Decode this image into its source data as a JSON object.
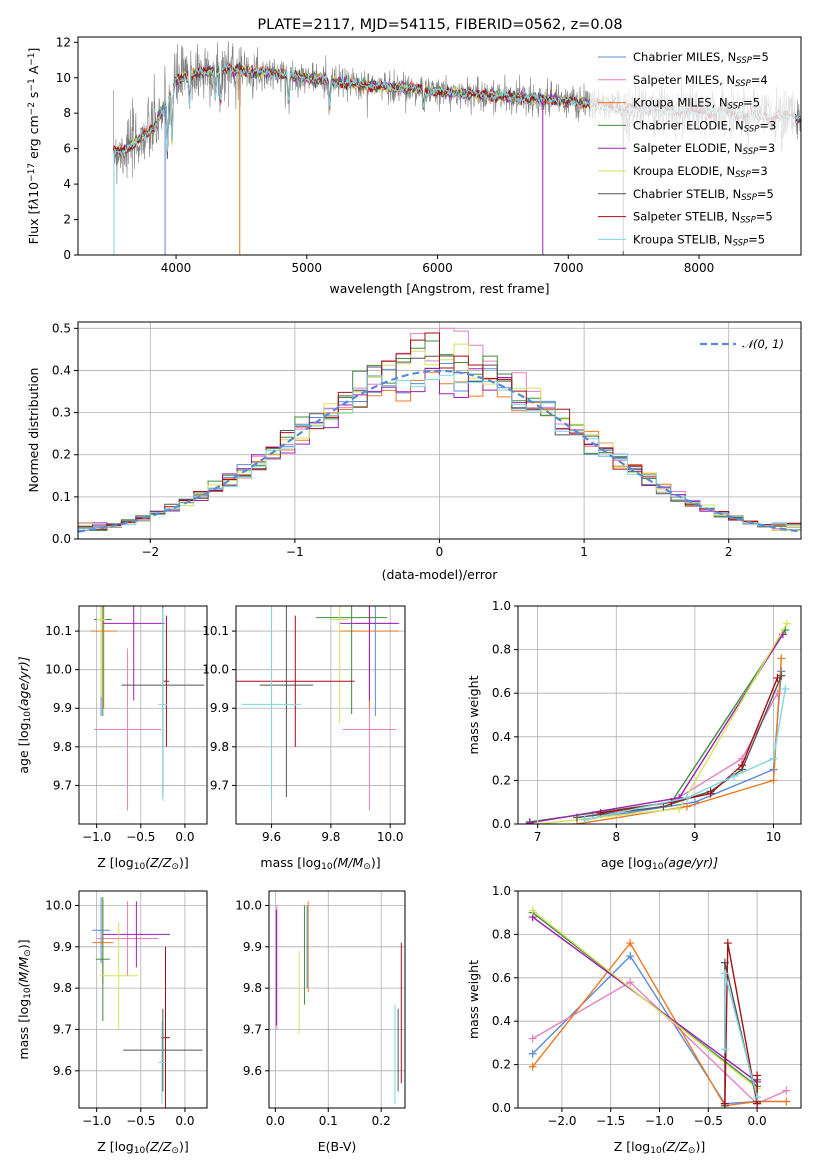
{
  "figure": {
    "title": "PLATE=2117, MJD=54115, FIBERID=0562, z=0.08"
  },
  "colors": {
    "Chabrier MILES": "#5b8bd6",
    "Salpeter MILES": "#e77fc1",
    "Kroupa MILES": "#ea7a22",
    "Chabrier ELODIE": "#3f8f3f",
    "Salpeter ELODIE": "#a020b8",
    "Kroupa ELODIE": "#d4e35a",
    "Chabrier STELIB": "#555555",
    "Salpeter STELIB": "#a50f15",
    "Kroupa STELIB": "#7fd6e0"
  },
  "chart_data": [
    {
      "id": "spectrum",
      "type": "line",
      "title": "PLATE=2117, MJD=54115, FIBERID=0562, z=0.08",
      "xlabel": "wavelength [Angstrom, rest frame]",
      "ylabel_parts": [
        "Flux [f",
        "λ",
        "10",
        "−17",
        " erg cm",
        "−2",
        " s",
        "−1",
        " A",
        "−1",
        "]"
      ],
      "xlim": [
        3250,
        8780
      ],
      "ylim": [
        0,
        12.3
      ],
      "xticks": [
        4000,
        5000,
        6000,
        7000,
        8000
      ],
      "yticks": [
        0,
        2,
        4,
        6,
        8,
        10,
        12
      ],
      "grid": false,
      "legend_position": "right",
      "legend": [
        {
          "name": "Chabrier MILES",
          "nssp": "5"
        },
        {
          "name": "Salpeter MILES",
          "nssp": "4"
        },
        {
          "name": "Kroupa MILES",
          "nssp": "5"
        },
        {
          "name": "Chabrier ELODIE",
          "nssp": "3"
        },
        {
          "name": "Salpeter ELODIE",
          "nssp": "3"
        },
        {
          "name": "Kroupa ELODIE",
          "nssp": "3"
        },
        {
          "name": "Chabrier STELIB",
          "nssp": "5"
        },
        {
          "name": "Salpeter STELIB",
          "nssp": "5"
        },
        {
          "name": "Kroupa STELIB",
          "nssp": "5"
        }
      ],
      "continuum": {
        "x": [
          3520,
          3600,
          3700,
          3800,
          3850,
          3900,
          3950,
          4000,
          4100,
          4200,
          4300,
          4400,
          4500,
          4700,
          5000,
          5200,
          5400,
          5600,
          5800,
          6000,
          6200,
          6400,
          6600,
          6800,
          7000,
          7200,
          7400
        ],
        "y": [
          5.8,
          5.9,
          6.4,
          7.0,
          7.4,
          8.2,
          9.1,
          9.8,
          10.2,
          10.3,
          10.4,
          10.5,
          10.4,
          10.3,
          10.0,
          9.8,
          9.6,
          9.5,
          9.4,
          9.2,
          9.1,
          9.0,
          8.9,
          8.8,
          8.7,
          8.5,
          8.3
        ]
      },
      "absorption_lines": [
        {
          "x": 3934,
          "depth": 3.0
        },
        {
          "x": 3969,
          "depth": 2.8
        },
        {
          "x": 4102,
          "depth": 1.6
        },
        {
          "x": 4300,
          "depth": 1.4
        },
        {
          "x": 4340,
          "depth": 1.8
        },
        {
          "x": 4861,
          "depth": 1.6
        },
        {
          "x": 5175,
          "depth": 1.4
        },
        {
          "x": 5893,
          "depth": 1.0
        }
      ],
      "spikes": [
        {
          "x": 3916,
          "y": 0
        },
        {
          "x": 4487,
          "y": 0
        },
        {
          "x": 6805,
          "y": 0
        },
        {
          "x": 7420,
          "y": 0
        },
        {
          "x": 3525,
          "y": 0
        }
      ],
      "data_extent": [
        3520,
        8780
      ]
    },
    {
      "id": "residuals",
      "type": "histogram",
      "xlabel": "(data-model)/error",
      "ylabel": "Normed distribution",
      "xlim": [
        -2.5,
        2.5
      ],
      "ylim": [
        0,
        0.515
      ],
      "xticks": [
        -2,
        -1,
        0,
        1,
        2
      ],
      "yticks": [
        0.0,
        0.1,
        0.2,
        0.3,
        0.4,
        0.5
      ],
      "grid": true,
      "legend_position": "top-right",
      "legend": [
        {
          "name": "𝒩(0, 1)",
          "style": "dashed"
        }
      ],
      "bin_width": 0.1,
      "series_peak_deviation": [
        0.0,
        0.06,
        -0.03,
        0.04,
        -0.02,
        0.03,
        0.01,
        0.05,
        -0.01
      ]
    },
    {
      "id": "z-age",
      "type": "errorbar",
      "xlabel_parts": [
        "Z [log",
        "10",
        "(Z/Z",
        "⊙",
        ")]"
      ],
      "ylabel_parts": [
        "age  [log",
        "10",
        "(age/yr)]"
      ],
      "xlim": [
        -1.2,
        0.25
      ],
      "ylim": [
        9.6,
        10.165
      ],
      "xticks": [
        -1.0,
        -0.5,
        0.0
      ],
      "xtick_labels": [
        "−1.0",
        "−0.5",
        "0.0"
      ],
      "yticks": [
        9.7,
        9.8,
        9.9,
        10.0,
        10.1
      ],
      "grid": true,
      "points": [
        {
          "s": "Chabrier MILES",
          "x": -0.95,
          "xe": 0.08,
          "y": 10.13,
          "ye": 0.25
        },
        {
          "s": "Salpeter MILES",
          "x": -0.65,
          "xe": 0.38,
          "y": 9.845,
          "ye": 0.21
        },
        {
          "s": "Kroupa MILES",
          "x": -0.92,
          "xe": 0.15,
          "y": 10.1,
          "ye": 0.2
        },
        {
          "s": "Chabrier ELODIE",
          "x": -0.93,
          "xe": 0.1,
          "y": 10.13,
          "ye": 0.25
        },
        {
          "s": "Salpeter ELODIE",
          "x": -0.58,
          "xe": 0.35,
          "y": 10.12,
          "ye": 0.2
        },
        {
          "s": "Kroupa ELODIE",
          "x": -0.95,
          "xe": 0.05,
          "y": 10.13,
          "ye": 0.2
        },
        {
          "s": "Chabrier STELIB",
          "x": -0.25,
          "xe": 0.47,
          "y": 9.96,
          "ye": 0.29
        },
        {
          "s": "Salpeter STELIB",
          "x": -0.21,
          "xe": 0.03,
          "y": 9.97,
          "ye": 0.17
        },
        {
          "s": "Kroupa STELIB",
          "x": -0.25,
          "xe": 0.05,
          "y": 9.91,
          "ye": 0.25
        }
      ]
    },
    {
      "id": "mass-age",
      "type": "errorbar",
      "xlabel_parts": [
        "mass [log",
        "10",
        "(M/M",
        "⊙",
        ")]"
      ],
      "ylabel_parts": [],
      "xlim": [
        9.48,
        10.05
      ],
      "ylim": [
        9.6,
        10.165
      ],
      "xticks": [
        9.6,
        9.8,
        10.0
      ],
      "xtick_labels": [
        "9.6",
        "9.8",
        "10.0"
      ],
      "yticks": [
        9.7,
        9.8,
        9.9,
        10.0,
        10.1
      ],
      "grid": true,
      "points": [
        {
          "s": "Chabrier MILES",
          "x": 9.95,
          "xe": 0.07,
          "y": 10.12,
          "ye": 0.24
        },
        {
          "s": "Salpeter MILES",
          "x": 9.93,
          "xe": 0.09,
          "y": 9.845,
          "ye": 0.21
        },
        {
          "s": "Kroupa MILES",
          "x": 9.93,
          "xe": 0.1,
          "y": 10.1,
          "ye": 0.2
        },
        {
          "s": "Chabrier ELODIE",
          "x": 9.87,
          "xe": 0.12,
          "y": 10.135,
          "ye": 0.25
        },
        {
          "s": "Salpeter ELODIE",
          "x": 9.93,
          "xe": 0.1,
          "y": 10.12,
          "ye": 0.2
        },
        {
          "s": "Kroupa ELODIE",
          "x": 9.83,
          "xe": 0.03,
          "y": 10.13,
          "ye": 0.27
        },
        {
          "s": "Chabrier STELIB",
          "x": 9.65,
          "xe": 0.09,
          "y": 9.96,
          "ye": 0.29
        },
        {
          "s": "Salpeter STELIB",
          "x": 9.68,
          "xe": 0.2,
          "y": 9.97,
          "ye": 0.17
        },
        {
          "s": "Kroupa STELIB",
          "x": 9.6,
          "xe": 0.1,
          "y": 9.91,
          "ye": 0.25
        }
      ]
    },
    {
      "id": "age-massweight",
      "type": "line",
      "xlabel_parts": [
        "age  [log",
        "10",
        "(age/yr)]"
      ],
      "ylabel": "mass weight",
      "xlim": [
        6.75,
        10.35
      ],
      "ylim": [
        0,
        1.0
      ],
      "xticks": [
        7,
        8,
        9,
        10
      ],
      "xtick_labels": [
        "7",
        "8",
        "9",
        "10"
      ],
      "yticks": [
        0.0,
        0.2,
        0.4,
        0.6,
        0.8,
        1.0
      ],
      "grid": true,
      "series": [
        {
          "name": "Chabrier MILES",
          "x": [
            7.6,
            9.0,
            10.0,
            10.1
          ],
          "y": [
            0.02,
            0.1,
            0.25,
            0.7
          ]
        },
        {
          "name": "Salpeter MILES",
          "x": [
            7.7,
            8.7,
            9.6,
            10.05
          ],
          "y": [
            0.04,
            0.1,
            0.3,
            0.6
          ]
        },
        {
          "name": "Kroupa MILES",
          "x": [
            7.5,
            8.9,
            10.0,
            10.1
          ],
          "y": [
            0.0,
            0.08,
            0.2,
            0.76
          ]
        },
        {
          "name": "Chabrier ELODIE",
          "x": [
            6.9,
            8.7,
            10.15
          ],
          "y": [
            0.01,
            0.1,
            0.89
          ]
        },
        {
          "name": "Salpeter ELODIE",
          "x": [
            6.9,
            8.8,
            10.12
          ],
          "y": [
            0.005,
            0.12,
            0.87
          ]
        },
        {
          "name": "Kroupa ELODIE",
          "x": [
            7.0,
            8.8,
            10.17
          ],
          "y": [
            0.0,
            0.07,
            0.92
          ]
        },
        {
          "name": "Chabrier STELIB",
          "x": [
            7.5,
            8.6,
            9.2,
            9.6,
            10.1
          ],
          "y": [
            0.03,
            0.08,
            0.15,
            0.25,
            0.68
          ]
        },
        {
          "name": "Salpeter STELIB",
          "x": [
            7.8,
            8.7,
            9.2,
            9.6,
            10.05
          ],
          "y": [
            0.05,
            0.1,
            0.14,
            0.27,
            0.67
          ]
        },
        {
          "name": "Kroupa STELIB",
          "x": [
            7.6,
            8.9,
            9.5,
            10.0,
            10.15
          ],
          "y": [
            0.02,
            0.12,
            0.22,
            0.3,
            0.62
          ]
        }
      ]
    },
    {
      "id": "z-mass",
      "type": "errorbar",
      "xlabel_parts": [
        "Z [log",
        "10",
        "(Z/Z",
        "⊙",
        ")]"
      ],
      "ylabel_parts": [
        "mass [log",
        "10",
        "(M/M",
        "⊙",
        ")]"
      ],
      "xlim": [
        -1.2,
        0.25
      ],
      "ylim": [
        9.51,
        10.035
      ],
      "xticks": [
        -1.0,
        -0.5,
        0.0
      ],
      "xtick_labels": [
        "−1.0",
        "−0.5",
        "0.0"
      ],
      "yticks": [
        9.6,
        9.7,
        9.8,
        9.9,
        10.0
      ],
      "grid": true,
      "points": [
        {
          "s": "Chabrier MILES",
          "x": -0.95,
          "xe": 0.1,
          "y": 9.94,
          "ye": 0.08
        },
        {
          "s": "Salpeter MILES",
          "x": -0.65,
          "xe": 0.35,
          "y": 9.92,
          "ye": 0.09
        },
        {
          "s": "Kroupa MILES",
          "x": -0.93,
          "xe": 0.12,
          "y": 9.91,
          "ye": 0.1
        },
        {
          "s": "Chabrier ELODIE",
          "x": -0.93,
          "xe": 0.08,
          "y": 9.87,
          "ye": 0.15
        },
        {
          "s": "Salpeter ELODIE",
          "x": -0.55,
          "xe": 0.38,
          "y": 9.93,
          "ye": 0.08
        },
        {
          "s": "Kroupa ELODIE",
          "x": -0.75,
          "xe": 0.22,
          "y": 9.83,
          "ye": 0.13
        },
        {
          "s": "Chabrier STELIB",
          "x": -0.25,
          "xe": 0.45,
          "y": 9.65,
          "ye": 0.1
        },
        {
          "s": "Salpeter STELIB",
          "x": -0.22,
          "xe": 0.05,
          "y": 9.68,
          "ye": 0.22
        },
        {
          "s": "Kroupa STELIB",
          "x": -0.26,
          "xe": 0.04,
          "y": 9.62,
          "ye": 0.1
        }
      ]
    },
    {
      "id": "ebv-mass",
      "type": "errorbar",
      "xlabel_parts": [
        "E(B-V)"
      ],
      "ylabel_parts": [],
      "xlim": [
        -0.012,
        0.245
      ],
      "ylim": [
        9.51,
        10.035
      ],
      "xticks": [
        0.0,
        0.1,
        0.2
      ],
      "xtick_labels": [
        "0.0",
        "0.1",
        "0.2"
      ],
      "yticks": [
        9.6,
        9.7,
        9.8,
        9.9,
        10.0
      ],
      "grid": true,
      "points": [
        {
          "s": "Chabrier MILES",
          "x": 0.06,
          "xe": 0.0,
          "y": 9.9,
          "ye": 0.1
        },
        {
          "s": "Salpeter MILES",
          "x": 0.003,
          "xe": 0.0,
          "y": 9.85,
          "ye": 0.15
        },
        {
          "s": "Kroupa MILES",
          "x": 0.062,
          "xe": 0.0,
          "y": 9.9,
          "ye": 0.11
        },
        {
          "s": "Chabrier ELODIE",
          "x": 0.055,
          "xe": 0.0,
          "y": 9.88,
          "ye": 0.12
        },
        {
          "s": "Salpeter ELODIE",
          "x": 0.002,
          "xe": 0.0,
          "y": 9.85,
          "ye": 0.14
        },
        {
          "s": "Kroupa ELODIE",
          "x": 0.045,
          "xe": 0.0,
          "y": 9.79,
          "ye": 0.1
        },
        {
          "s": "Chabrier STELIB",
          "x": 0.232,
          "xe": 0.0,
          "y": 9.65,
          "ye": 0.1
        },
        {
          "s": "Salpeter STELIB",
          "x": 0.238,
          "xe": 0.0,
          "y": 9.74,
          "ye": 0.17
        },
        {
          "s": "Kroupa STELIB",
          "x": 0.226,
          "xe": 0.0,
          "y": 9.64,
          "ye": 0.12
        }
      ]
    },
    {
      "id": "z-massweight",
      "type": "line",
      "xlabel_parts": [
        "Z [log",
        "10",
        "(Z/Z",
        "⊙",
        ")]"
      ],
      "ylabel": "mass weight",
      "xlim": [
        -2.45,
        0.45
      ],
      "ylim": [
        0,
        1.0
      ],
      "xticks": [
        -2.0,
        -1.5,
        -1.0,
        -0.5,
        0.0
      ],
      "xtick_labels": [
        "−2.0",
        "−1.5",
        "−1.0",
        "−0.5",
        "0.0"
      ],
      "yticks": [
        0.0,
        0.2,
        0.4,
        0.6,
        0.8,
        1.0
      ],
      "grid": true,
      "series": [
        {
          "name": "Chabrier MILES",
          "x": [
            -2.3,
            -1.3,
            -0.33,
            0.0
          ],
          "y": [
            0.25,
            0.7,
            0.02,
            0.03
          ]
        },
        {
          "name": "Salpeter MILES",
          "x": [
            -2.3,
            -1.3,
            0.0,
            0.3
          ],
          "y": [
            0.32,
            0.58,
            0.02,
            0.08
          ]
        },
        {
          "name": "Kroupa MILES",
          "x": [
            -2.3,
            -1.3,
            -0.33,
            0.0,
            0.3
          ],
          "y": [
            0.19,
            0.76,
            0.01,
            0.03,
            0.03
          ]
        },
        {
          "name": "Chabrier ELODIE",
          "x": [
            -2.3,
            0.0
          ],
          "y": [
            0.9,
            0.1
          ]
        },
        {
          "name": "Salpeter ELODIE",
          "x": [
            -2.3,
            0.0
          ],
          "y": [
            0.88,
            0.12
          ]
        },
        {
          "name": "Kroupa ELODIE",
          "x": [
            -2.3,
            0.0
          ],
          "y": [
            0.91,
            0.09
          ]
        },
        {
          "name": "Chabrier STELIB",
          "x": [
            -0.33,
            -0.33,
            0.0,
            0.0
          ],
          "y": [
            0.01,
            0.67,
            0.03,
            0.13
          ]
        },
        {
          "name": "Salpeter STELIB",
          "x": [
            -0.33,
            -0.3,
            0.0,
            0.0
          ],
          "y": [
            0.02,
            0.76,
            0.02,
            0.15
          ]
        },
        {
          "name": "Kroupa STELIB",
          "x": [
            -0.33,
            -0.33,
            0.0
          ],
          "y": [
            0.27,
            0.62,
            0.05
          ]
        }
      ]
    }
  ]
}
